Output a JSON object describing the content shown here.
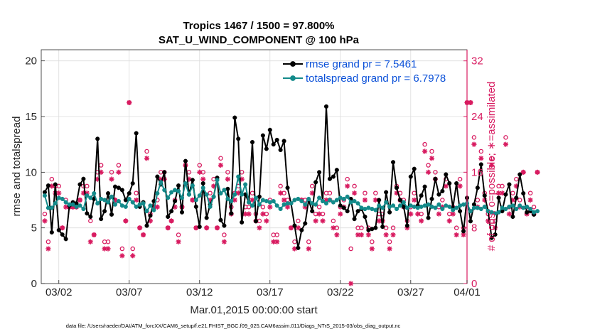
{
  "chart_data": {
    "type": "line",
    "title": "Tropics 1467 / 1500 = 97.800%",
    "subtitle": "SAT_U_WIND_COMPONENT @ 100 hPa",
    "xlabel": "Mar.01,2015 00:00:00 start",
    "ylabel_left": "rmse and totalspread",
    "ylabel_right": "# of obs: o=possible; ∗=assimilated",
    "footer": "data file: /Users/raeder/DAI/ATM_forcXX/CAM6_setup/f.e21.FHIST_BGC.f09_025.CAM6assim.011/Diags_NTrS_2015-03/obs_diag_output.nc",
    "xlim": [
      0.75,
      31.0
    ],
    "ylim_left": [
      0,
      21
    ],
    "ylim_right": [
      0,
      33.6
    ],
    "x_ticks": [
      {
        "value": 2,
        "label": "03/02"
      },
      {
        "value": 7,
        "label": "03/07"
      },
      {
        "value": 12,
        "label": "03/12"
      },
      {
        "value": 17,
        "label": "03/17"
      },
      {
        "value": 22,
        "label": "03/22"
      },
      {
        "value": 27,
        "label": "03/27"
      },
      {
        "value": 32,
        "label": "04/01"
      }
    ],
    "y_ticks_left": [
      "0",
      "5",
      "10",
      "15",
      "20"
    ],
    "y_ticks_right": [
      "0",
      "8",
      "16",
      "24",
      "32"
    ],
    "colors": {
      "rmse": "#000000",
      "totalspread": "#138a8a",
      "obs": "#d81b60",
      "legend_text": "#0a50d8",
      "right_axis": "#d81b60"
    },
    "legend": [
      {
        "series": "rmse",
        "label": "rmse grand pr = 7.5461"
      },
      {
        "series": "totalspread",
        "label": "totalspread grand pr = 6.7978"
      }
    ],
    "x_start": 1.0,
    "x_step": 0.25,
    "series": [
      {
        "name": "rmse",
        "axis": "left",
        "values": [
          8.2,
          8.8,
          4.6,
          8.9,
          4.8,
          4.4,
          4.0,
          7.0,
          7.3,
          7.2,
          8.9,
          9.4,
          6.3,
          6.0,
          7.6,
          13.0,
          5.8,
          6.5,
          8.1,
          6.2,
          8.7,
          8.6,
          8.4,
          7.5,
          8.1,
          9.0,
          13.5,
          6.9,
          7.3,
          5.2,
          6.1,
          7.4,
          9.6,
          8.9,
          10.0,
          6.0,
          6.5,
          7.4,
          8.8,
          6.4,
          11.0,
          8.0,
          9.3,
          6.9,
          5.1,
          9.0,
          5.9,
          7.1,
          7.8,
          9.5,
          5.7,
          5.2,
          8.5,
          6.3,
          14.9,
          13.0,
          5.5,
          8.0,
          7.3,
          12.7,
          5.6,
          7.8,
          13.3,
          12.1,
          13.8,
          12.5,
          12.9,
          12.0,
          12.8,
          8.6,
          7.2,
          5.2,
          3.2,
          4.8,
          5.4,
          7.5,
          6.5,
          9.1,
          10.0,
          7.4,
          15.9,
          9.4,
          9.6,
          10.2,
          7.0,
          6.8,
          6.5,
          7.6,
          5.8,
          6.5,
          6.7,
          6.0,
          4.8,
          4.9,
          5.0,
          7.5,
          5.1,
          8.2,
          6.4,
          10.9,
          8.6,
          7.5,
          6.9,
          5.2,
          9.6,
          10.3,
          7.0,
          7.9,
          8.7,
          5.9,
          7.6,
          9.4,
          8.0,
          8.3,
          9.8,
          9.0,
          6.8,
          9.0,
          6.5,
          4.7,
          7.7,
          5.6,
          7.1,
          8.6,
          10.7,
          7.9,
          6.5,
          4.1,
          4.4,
          7.7,
          6.5,
          8.0,
          8.9,
          6.0,
          7.7,
          9.8,
          8.1,
          6.4,
          6.5,
          6.2
        ]
      },
      {
        "name": "totalspread",
        "axis": "left",
        "values": [
          7.9,
          6.8,
          6.8,
          7.2,
          7.7,
          7.6,
          7.3,
          7.1,
          7.1,
          6.9,
          7.0,
          6.7,
          7.9,
          7.7,
          8.1,
          7.2,
          7.6,
          7.5,
          7.3,
          7.8,
          7.1,
          7.4,
          7.0,
          6.9,
          7.6,
          7.3,
          6.9,
          7.1,
          7.2,
          6.5,
          7.0,
          6.6,
          8.1,
          9.1,
          8.4,
          7.7,
          8.2,
          8.4,
          8.3,
          7.7,
          9.0,
          8.0,
          8.8,
          7.5,
          7.9,
          8.6,
          8.0,
          6.9,
          7.8,
          9.3,
          8.1,
          8.4,
          7.6,
          7.4,
          8.0,
          9.6,
          8.0,
          8.9,
          7.3,
          7.0,
          7.7,
          7.1,
          7.5,
          7.4,
          7.3,
          7.4,
          7.0,
          6.7,
          7.1,
          7.2,
          7.2,
          7.5,
          7.6,
          7.4,
          7.1,
          7.6,
          7.2,
          7.1,
          7.7,
          7.4,
          7.2,
          7.5,
          7.3,
          7.5,
          7.7,
          7.6,
          7.8,
          7.3,
          7.4,
          7.2,
          6.8,
          6.7,
          6.8,
          6.7,
          6.6,
          7.0,
          6.8,
          7.3,
          6.9,
          7.0,
          6.7,
          7.0,
          7.3,
          6.8,
          7.0,
          6.9,
          6.8,
          6.9,
          7.0,
          7.1,
          6.9,
          6.8,
          7.1,
          6.7,
          7.0,
          6.9,
          6.6,
          6.8,
          7.0,
          7.1,
          7.2,
          6.5,
          6.8,
          6.8,
          6.7,
          6.9,
          6.5,
          6.4,
          6.3,
          6.4,
          6.8,
          6.7,
          6.9,
          7.0,
          6.7,
          7.0,
          6.8,
          6.9,
          6.7,
          6.4,
          6.5
        ]
      },
      {
        "name": "obs_possible",
        "axis": "right",
        "marker": "o",
        "values": [
          10,
          6,
          15,
          14,
          14,
          8,
          12,
          11,
          11,
          11,
          12,
          14,
          14,
          9,
          7,
          16,
          17,
          6,
          6,
          16,
          12,
          17,
          5,
          9,
          26,
          5,
          13,
          8,
          7,
          19,
          10,
          11,
          12,
          16,
          16,
          8,
          9,
          12,
          7,
          11,
          17,
          16,
          12,
          8,
          17,
          16,
          8,
          13,
          15,
          8,
          18,
          7,
          16,
          11,
          13,
          14,
          16,
          11,
          11,
          13,
          10,
          9,
          11,
          10,
          12,
          7,
          7,
          14,
          13,
          12,
          8,
          6,
          9,
          12,
          12,
          6,
          14,
          10,
          11,
          10,
          13,
          13,
          9,
          8,
          11,
          12,
          15,
          5,
          14,
          8,
          8,
          13,
          8,
          6,
          13,
          10,
          10,
          8,
          6,
          8,
          14,
          13,
          12,
          9,
          11,
          13,
          11,
          10,
          20,
          17,
          19,
          16,
          11,
          12,
          15,
          10,
          11,
          8,
          15,
          8,
          26,
          26,
          21,
          12,
          19,
          13,
          10,
          18,
          9,
          14,
          14,
          21,
          11,
          13,
          15,
          12,
          16,
          11,
          13,
          11,
          16
        ]
      },
      {
        "name": "obs_assimilated",
        "axis": "right",
        "marker": "*",
        "values": [
          9,
          5,
          14,
          13,
          13,
          8,
          11,
          11,
          11,
          11,
          12,
          13,
          13,
          6,
          7,
          15,
          16,
          5,
          5,
          15,
          12,
          16,
          4,
          9,
          26,
          4,
          12,
          8,
          7,
          18,
          9,
          11,
          11,
          15,
          15,
          8,
          9,
          11,
          6,
          11,
          17,
          15,
          12,
          8,
          16,
          15,
          8,
          12,
          14,
          8,
          17,
          6,
          15,
          10,
          12,
          13,
          15,
          10,
          10,
          12,
          9,
          8,
          10,
          9,
          11,
          6,
          6,
          13,
          12,
          11,
          8,
          5,
          8,
          12,
          11,
          5,
          13,
          9,
          10,
          9,
          12,
          12,
          8,
          7,
          10,
          11,
          14,
          0,
          13,
          7,
          7,
          12,
          7,
          5,
          12,
          9,
          9,
          7,
          5,
          7,
          13,
          12,
          11,
          8,
          10,
          12,
          10,
          9,
          19,
          16,
          18,
          15,
          10,
          11,
          14,
          9,
          10,
          7,
          14,
          7,
          26,
          26,
          20,
          11,
          18,
          12,
          9,
          17,
          8,
          13,
          13,
          20,
          10,
          12,
          14,
          11,
          16,
          10,
          12,
          10,
          16
        ]
      }
    ]
  }
}
